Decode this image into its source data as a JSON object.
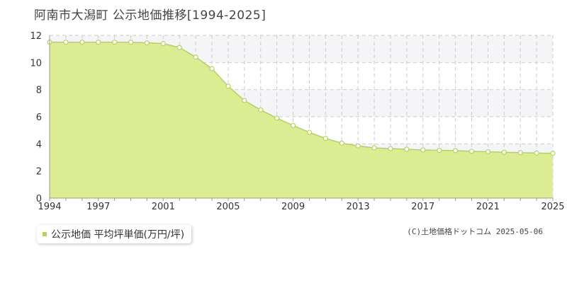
{
  "title": "阿南市大潟町 公示地価推移[1994-2025]",
  "legend_label": "公示地価 平均坪単価(万円/坪)",
  "credit": "(C)土地価格ドットコム 2025-05-06",
  "colors": {
    "area_fill": "#dcec92",
    "line": "#b4d454",
    "marker_fill": "#ffffff",
    "marker_stroke": "#b4d454",
    "legend_marker": "#b4d454",
    "grid": "#cccccc",
    "axis": "#999999",
    "band": "#f5f5f7"
  },
  "chart_data": {
    "type": "area",
    "title": "阿南市大潟町 公示地価推移[1994-2025]",
    "xlabel": "",
    "ylabel": "",
    "x_range": [
      1994,
      2025
    ],
    "ylim": [
      0,
      12
    ],
    "y_ticks": [
      0,
      2,
      4,
      6,
      8,
      10,
      12
    ],
    "x_tick_labels": [
      1994,
      1997,
      2001,
      2005,
      2009,
      2013,
      2017,
      2021,
      2025
    ],
    "grid": true,
    "legend_position": "bottom-left",
    "series": [
      {
        "name": "公示地価 平均坪単価(万円/坪)",
        "x": [
          1994,
          1995,
          1996,
          1997,
          1998,
          1999,
          2000,
          2001,
          2002,
          2003,
          2004,
          2005,
          2006,
          2007,
          2008,
          2009,
          2010,
          2011,
          2012,
          2013,
          2014,
          2015,
          2016,
          2017,
          2018,
          2019,
          2020,
          2021,
          2022,
          2023,
          2024,
          2025
        ],
        "values": [
          11.5,
          11.5,
          11.5,
          11.5,
          11.5,
          11.5,
          11.45,
          11.4,
          11.1,
          10.4,
          9.55,
          8.25,
          7.2,
          6.5,
          5.9,
          5.35,
          4.85,
          4.4,
          4.05,
          3.85,
          3.7,
          3.65,
          3.6,
          3.55,
          3.52,
          3.5,
          3.45,
          3.42,
          3.38,
          3.35,
          3.32,
          3.3
        ]
      }
    ]
  }
}
